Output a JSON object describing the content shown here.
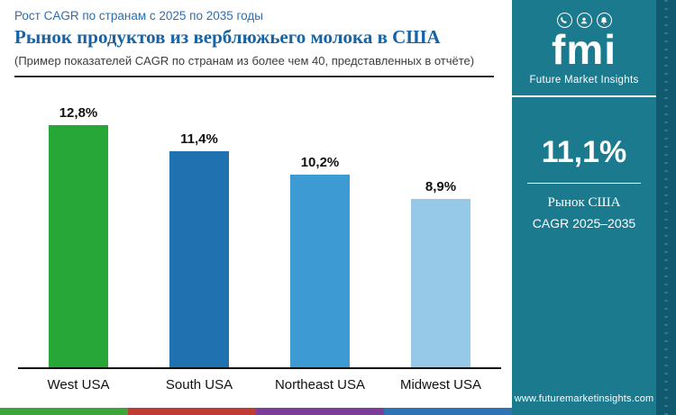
{
  "header": {
    "eyebrow": "Рост CAGR по странам с 2025 по 2035 годы",
    "title": "Рынок продуктов из верблюжьего молока в США",
    "subtitle": "(Пример показателей CAGR по странам из более чем 40, представленных в отчёте)"
  },
  "chart_data": {
    "type": "bar",
    "title": "Рост CAGR по странам с 2025 по 2035 годы",
    "categories": [
      "West USA",
      "South USA",
      "Northeast USA",
      "Midwest USA"
    ],
    "values": [
      12.8,
      11.4,
      10.2,
      8.9
    ],
    "value_labels": [
      "12,8%",
      "11,4%",
      "10,2%",
      "8,9%"
    ],
    "bar_colors": [
      "#26a737",
      "#1f71b0",
      "#3e9ad2",
      "#96c8e8"
    ],
    "unit": "%",
    "ylim": [
      0,
      14
    ],
    "grid": false,
    "legend": false
  },
  "sidebar": {
    "background_color": "#1c7a8e",
    "logo": {
      "text": "fmi",
      "caption": "Future Market Insights",
      "icons": [
        "phone-icon",
        "person-icon",
        "bell-icon"
      ]
    },
    "highlight": {
      "value": "11,1%",
      "label_line1": "Рынок США",
      "label_line2": "CAGR 2025–2035"
    },
    "website": "www.futuremarketinsights.com"
  },
  "footer_stripe_colors": [
    "#3fa33c",
    "#bf3b33",
    "#7a3e98",
    "#2e74b5"
  ]
}
